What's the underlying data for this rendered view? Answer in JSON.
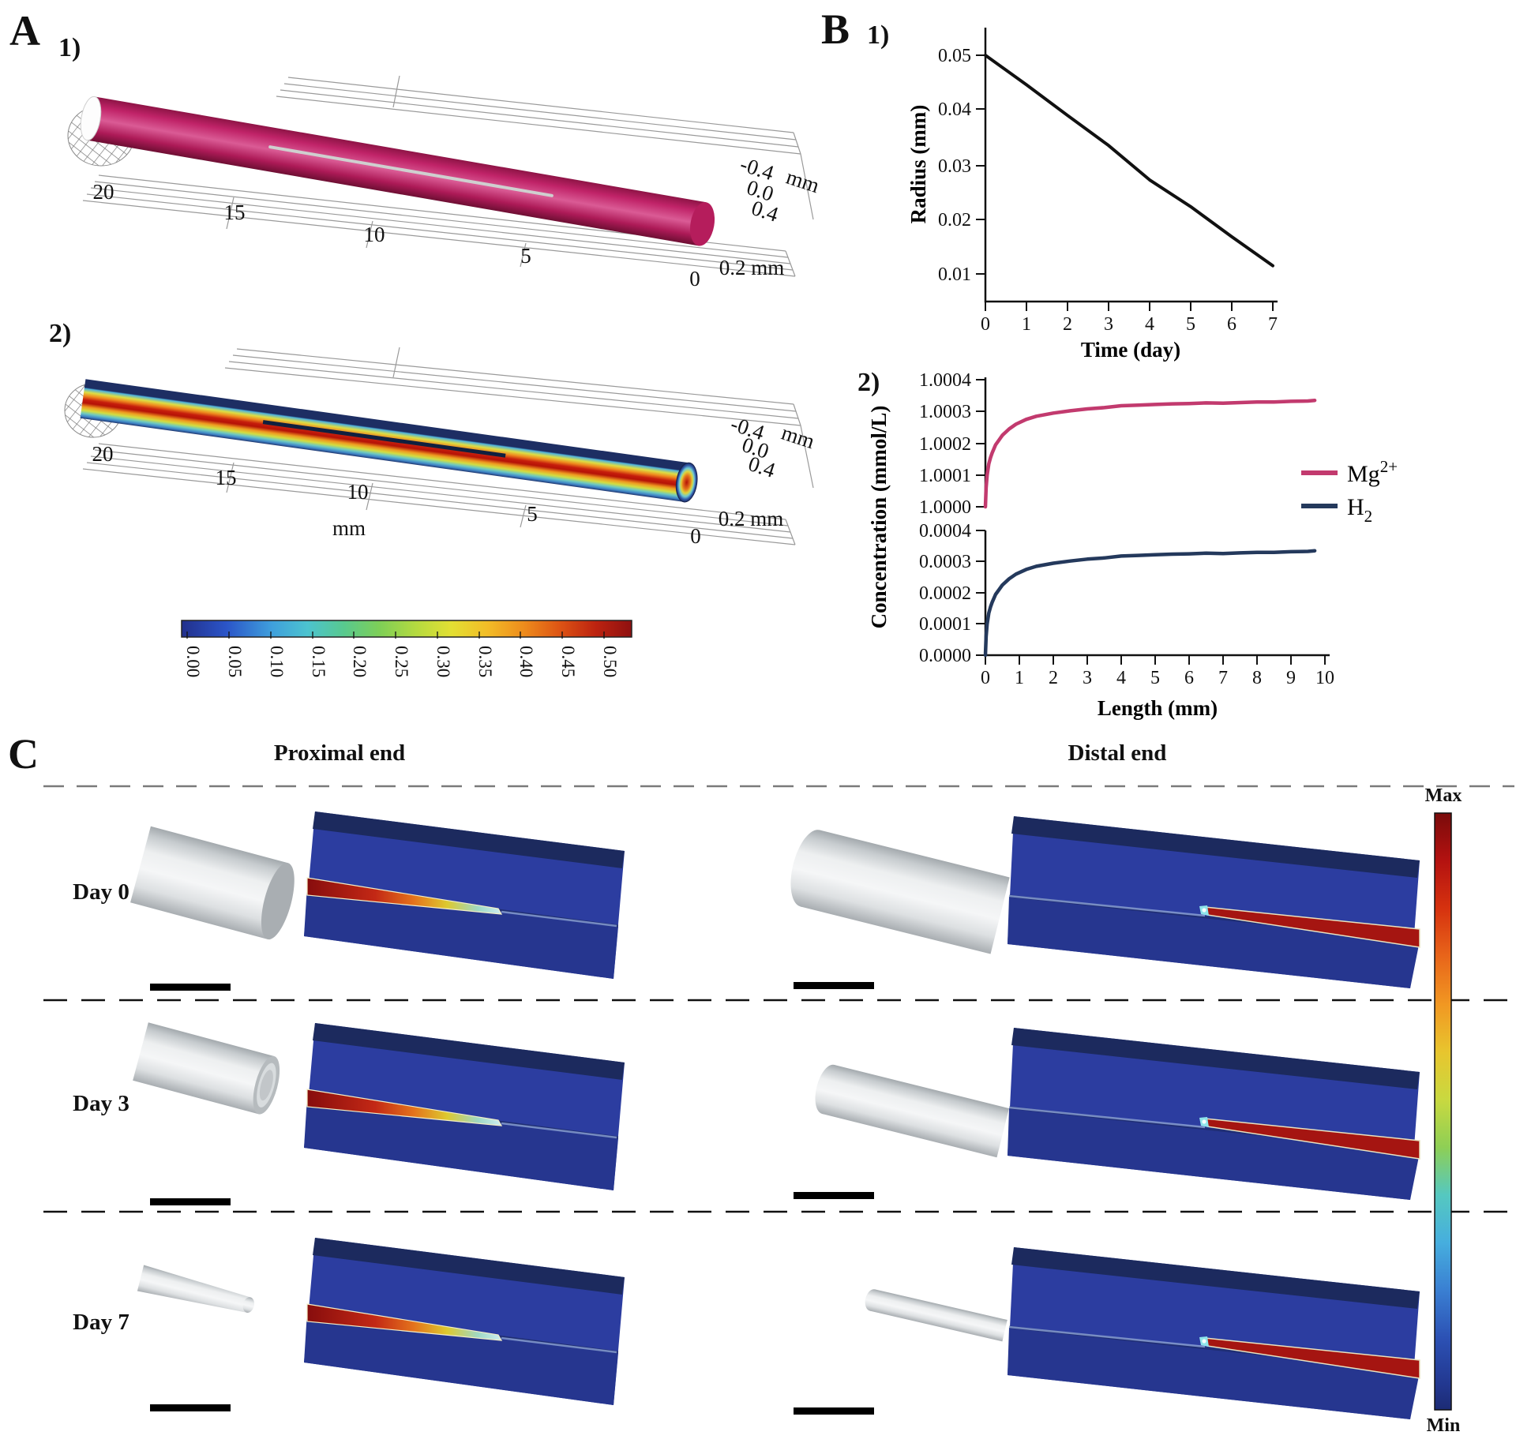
{
  "panel_a": {
    "label": "A",
    "sub1_label": "1)",
    "sub2_label": "2)",
    "a1": {
      "length_ticks": [
        "20",
        "15",
        "10",
        "5",
        "0"
      ],
      "radial_ticks": [
        "-0.4",
        "0.0",
        "0.4"
      ],
      "radial_unit": "mm",
      "depth_label": "0.2 mm"
    },
    "a2": {
      "length_ticks": [
        "20",
        "15",
        "10",
        "5",
        "0"
      ],
      "axis_title": "mm",
      "radial_ticks": [
        "-0.4",
        "0.0",
        "0.4"
      ],
      "radial_unit": "mm",
      "depth_label": "0.2 mm"
    },
    "colorbar": {
      "tick_labels": [
        "0.00",
        "0.05",
        "0.10",
        "0.15",
        "0.20",
        "0.25",
        "0.30",
        "0.35",
        "0.40",
        "0.45",
        "0.50"
      ]
    }
  },
  "panel_b": {
    "label": "B",
    "sub1_label": "1)",
    "sub2_label": "2)",
    "b1": {
      "ylabel": "Radius (mm)",
      "xlabel": "Time (day)",
      "ytick_labels": [
        "0.05",
        "0.04",
        "0.03",
        "0.02",
        "0.01"
      ],
      "xtick_labels": [
        "0",
        "1",
        "2",
        "3",
        "4",
        "5",
        "6",
        "7"
      ]
    },
    "b2": {
      "ylabel": "Concentration (mmol/L)",
      "xlabel": "Length (mm)",
      "upper_ytick_labels": [
        "1.0004",
        "1.0003",
        "1.0002",
        "1.0001",
        "1.0000"
      ],
      "lower_ytick_labels": [
        "0.0004",
        "0.0003",
        "0.0002",
        "0.0001",
        "0.0000"
      ],
      "xtick_labels": [
        "0",
        "1",
        "2",
        "3",
        "4",
        "5",
        "6",
        "7",
        "8",
        "9",
        "10"
      ],
      "legend": [
        {
          "base": "Mg",
          "script": "2+",
          "script_type": "sup"
        },
        {
          "base": "H",
          "script": "2",
          "script_type": "sub"
        }
      ]
    }
  },
  "panel_c": {
    "label": "C",
    "col_headers": [
      "Proximal end",
      "Distal end"
    ],
    "row_labels": [
      "Day 0",
      "Day 3",
      "Day 7"
    ],
    "colorbar": {
      "max_label": "Max",
      "min_label": "Min"
    }
  },
  "colors": {
    "mg_curve": "#c23a6e",
    "h2_curve": "#24395c",
    "radius_curve": "#111111",
    "tube_pink": "#c02368",
    "sim_field_blue": "#2c3da0"
  },
  "chart_data": [
    {
      "type": "line",
      "title": "Implant radius degradation",
      "xlabel": "Time (day)",
      "ylabel": "Radius (mm)",
      "xlim": [
        0,
        7
      ],
      "ylim": [
        0.005,
        0.055
      ],
      "grid": false,
      "x": [
        0,
        1,
        2,
        3,
        4,
        5,
        6,
        7
      ],
      "y": [
        0.05,
        0.0446,
        0.039,
        0.0335,
        0.0272,
        0.0223,
        0.0168,
        0.0115
      ]
    },
    {
      "type": "line",
      "title": "Concentration along length",
      "xlabel": "Length (mm)",
      "ylabel": "Concentration (mmol/L)",
      "xlim": [
        0,
        10
      ],
      "upper_ylim": [
        1.0,
        1.0004
      ],
      "lower_ylim": [
        0.0,
        0.0004
      ],
      "grid": false,
      "legend_position": "right",
      "x": [
        0,
        0.02,
        0.05,
        0.1,
        0.15,
        0.2,
        0.3,
        0.4,
        0.5,
        0.7,
        0.9,
        1.2,
        1.5,
        2,
        2.5,
        3,
        3.5,
        4,
        4.5,
        5,
        5.5,
        6,
        6.5,
        7,
        7.5,
        8,
        8.5,
        9,
        9.5,
        9.7
      ],
      "series": [
        {
          "name": "Mg2+",
          "axis": "upper",
          "values": [
            1.0,
            1.00006,
            1.0001,
            1.000135,
            1.000155,
            1.00017,
            1.000195,
            1.00021,
            1.000225,
            1.000245,
            1.00026,
            1.000275,
            1.000285,
            1.000295,
            1.000302,
            1.000308,
            1.000312,
            1.000318,
            1.00032,
            1.000322,
            1.000324,
            1.000325,
            1.000327,
            1.000326,
            1.000328,
            1.00033,
            1.00033,
            1.000332,
            1.000333,
            1.000335
          ]
        },
        {
          "name": "H2",
          "axis": "lower",
          "values": [
            0.0,
            6e-05,
            0.0001,
            0.000135,
            0.000155,
            0.00017,
            0.000195,
            0.00021,
            0.000225,
            0.000245,
            0.00026,
            0.000275,
            0.000285,
            0.000295,
            0.000302,
            0.000308,
            0.000312,
            0.000318,
            0.00032,
            0.000322,
            0.000324,
            0.000325,
            0.000327,
            0.000326,
            0.000328,
            0.00033,
            0.00033,
            0.000332,
            0.000333,
            0.000335
          ]
        }
      ]
    },
    {
      "type": "heatmap",
      "title": "Concentration colorbar (panel A2)",
      "scale_ticks": [
        0.0,
        0.05,
        0.1,
        0.15,
        0.2,
        0.25,
        0.3,
        0.35,
        0.4,
        0.45,
        0.5
      ]
    }
  ]
}
